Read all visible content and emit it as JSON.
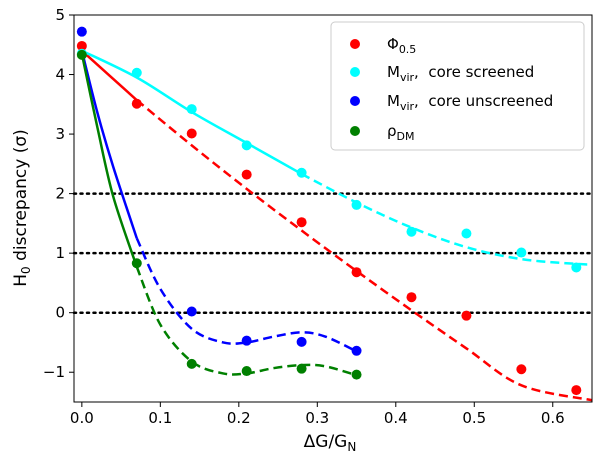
{
  "chart_data": {
    "type": "scatter",
    "title": "",
    "xlabel": "ΔG/G",
    "xlabel_sub": "N",
    "ylabel": "H",
    "ylabel_sub": "0",
    "ylabel_rest": " discrepancy (σ)",
    "xlim": [
      -0.01,
      0.65
    ],
    "ylim": [
      -1.5,
      5
    ],
    "xticks": [
      0.0,
      0.1,
      0.2,
      0.3,
      0.4,
      0.5,
      0.6
    ],
    "xtick_labels": [
      "0.0",
      "0.1",
      "0.2",
      "0.3",
      "0.4",
      "0.5",
      "0.6"
    ],
    "yticks": [
      -1,
      0,
      1,
      2,
      3,
      4,
      5
    ],
    "ytick_labels": [
      "−1",
      "0",
      "1",
      "2",
      "3",
      "4",
      "5"
    ],
    "reference_lines_y": [
      0,
      1,
      2
    ],
    "legend_position": "top-right",
    "grid": false,
    "series": [
      {
        "name": "Φ",
        "name_sub": "0.5",
        "color": "#ff0000",
        "x": [
          0.0,
          0.07,
          0.14,
          0.21,
          0.28,
          0.35,
          0.42,
          0.49,
          0.56,
          0.63
        ],
        "y": [
          4.48,
          3.51,
          3.01,
          2.32,
          1.52,
          0.68,
          0.26,
          -0.05,
          -0.95,
          -1.3
        ],
        "fit_x": [
          0.0,
          0.07,
          0.14,
          0.21,
          0.28,
          0.35,
          0.42,
          0.49,
          0.56,
          0.65
        ],
        "fit_y": [
          4.4,
          3.57,
          2.81,
          2.08,
          1.38,
          0.7,
          0.04,
          -0.6,
          -1.22,
          -1.47
        ],
        "fit_solid_until": 0.07
      },
      {
        "name": "M",
        "name_sub": "vir",
        "name_rest": ",  core screened",
        "color": "#00ffff",
        "x": [
          0.0,
          0.07,
          0.14,
          0.21,
          0.28,
          0.35,
          0.42,
          0.49,
          0.56,
          0.63
        ],
        "y": [
          4.35,
          4.03,
          3.42,
          2.81,
          2.35,
          1.81,
          1.36,
          1.33,
          1.01,
          0.76
        ],
        "fit_x": [
          0.0,
          0.07,
          0.14,
          0.21,
          0.28,
          0.35,
          0.42,
          0.49,
          0.56,
          0.63,
          0.65
        ],
        "fit_y": [
          4.4,
          3.95,
          3.37,
          2.85,
          2.33,
          1.85,
          1.43,
          1.1,
          0.9,
          0.82,
          0.81
        ],
        "fit_solid_until": 0.28
      },
      {
        "name": "M",
        "name_sub": "vir",
        "name_rest": ",  core unscreened",
        "color": "#0000ff",
        "x": [
          0.0,
          0.14,
          0.21,
          0.28,
          0.35
        ],
        "y": [
          4.72,
          0.02,
          -0.47,
          -0.49,
          -0.64
        ],
        "fit_x": [
          0.0,
          0.02,
          0.04,
          0.07,
          0.1,
          0.14,
          0.18,
          0.21,
          0.245,
          0.28,
          0.31,
          0.35
        ],
        "fit_y": [
          4.4,
          3.35,
          2.45,
          1.25,
          0.4,
          -0.27,
          -0.5,
          -0.5,
          -0.4,
          -0.33,
          -0.4,
          -0.65
        ],
        "fit_solid_until": 0.07
      },
      {
        "name": "ρ",
        "name_sub": "DM",
        "color": "#008000",
        "x": [
          0.0,
          0.07,
          0.14,
          0.21,
          0.28,
          0.35
        ],
        "y": [
          4.33,
          0.83,
          -0.86,
          -0.98,
          -0.94,
          -1.04
        ],
        "fit_x": [
          0.0,
          0.02,
          0.04,
          0.07,
          0.1,
          0.14,
          0.18,
          0.21,
          0.245,
          0.28,
          0.31,
          0.35
        ],
        "fit_y": [
          4.35,
          3.1,
          1.95,
          0.77,
          -0.2,
          -0.82,
          -1.02,
          -1.02,
          -0.93,
          -0.88,
          -0.9,
          -1.05
        ],
        "fit_solid_until": 0.07
      }
    ]
  }
}
